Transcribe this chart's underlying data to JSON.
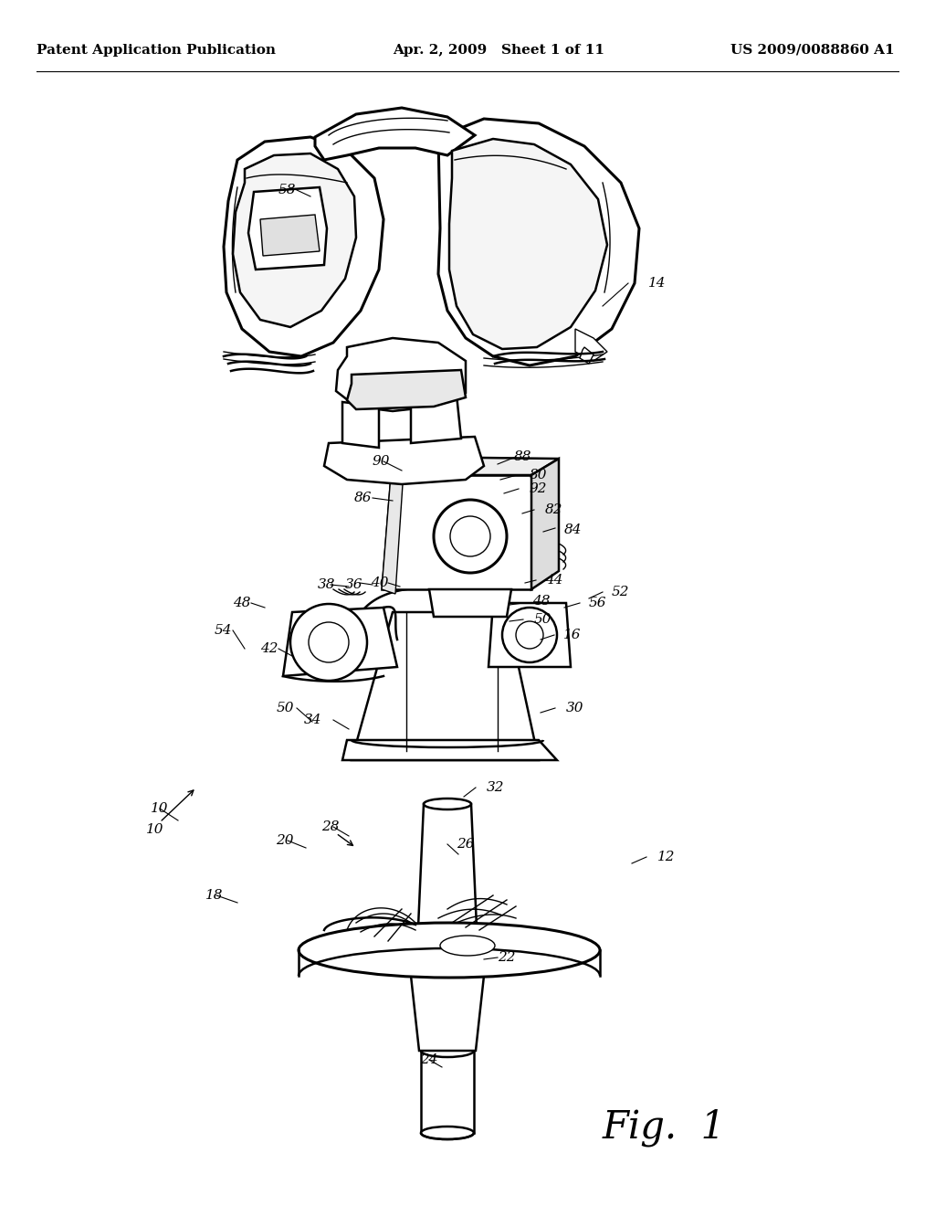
{
  "background_color": "#ffffff",
  "header_left": "Patent Application Publication",
  "header_center": "Apr. 2, 2009   Sheet 1 of 11",
  "header_right": "US 2009/0088860 A1",
  "figure_label": "Fig.  1",
  "line_color": "#000000",
  "header_fontsize": 11,
  "fig_label_fontsize": 30,
  "lw_main": 1.8,
  "lw_thin": 1.0,
  "lw_thick": 2.2
}
